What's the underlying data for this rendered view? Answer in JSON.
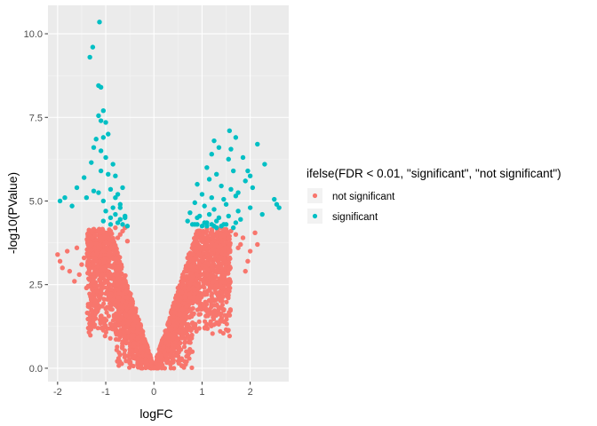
{
  "chart_data": {
    "type": "scatter",
    "title": "",
    "xlabel": "logFC",
    "ylabel": "-log10(PValue)",
    "xlim": [
      -2.2,
      2.8
    ],
    "ylim": [
      -0.4,
      10.85
    ],
    "x_ticks": [
      -2,
      -1,
      0,
      1,
      2
    ],
    "x_tick_labels": [
      "-2",
      "-1",
      "0",
      "1",
      "2"
    ],
    "y_ticks": [
      0,
      2.5,
      5,
      7.5,
      10
    ],
    "y_tick_labels": [
      "0.0",
      "2.5",
      "5.0",
      "7.5",
      "10.0"
    ],
    "grid": true,
    "legend": {
      "title": "ifelse(FDR < 0.01, \"significant\", \"not significant\")",
      "placement": "right",
      "entries": [
        {
          "label": "not significant",
          "color": "#F8766D"
        },
        {
          "label": "significant",
          "color": "#00BFC4"
        }
      ]
    },
    "colors": {
      "panel": "#EBEBEB",
      "grid_major": "#FFFFFF",
      "not_significant": "#F8766D",
      "significant": "#00BFC4"
    },
    "significance_threshold_y": 4.2,
    "series": [
      {
        "name": "significant",
        "x": [
          -1.13,
          -1.27,
          -1.33,
          -1.15,
          -1.1,
          -1.05,
          -1.15,
          -1.1,
          -1.0,
          -0.95,
          -1.05,
          -1.2,
          -1.25,
          -1.1,
          -1.0,
          -0.85,
          -1.3,
          -1.1,
          -0.95,
          -0.8,
          -1.45,
          -1.6,
          -1.85,
          -1.95,
          -1.7,
          -1.4,
          -1.25,
          -1.15,
          -1.05,
          -0.9,
          -0.75,
          -0.7,
          -0.85,
          -1.0,
          -0.8,
          -0.6,
          -0.7,
          -0.9,
          -1.05,
          -0.65,
          -0.75,
          -0.9,
          -0.55,
          -0.6,
          -0.7,
          -0.8,
          -0.65,
          1.57,
          1.25,
          1.35,
          1.6,
          1.7,
          2.15,
          1.2,
          1.55,
          1.85,
          2.3,
          1.95,
          1.1,
          1.3,
          1.65,
          1.9,
          2.0,
          0.9,
          1.15,
          1.4,
          1.6,
          1.75,
          2.05,
          1.0,
          1.2,
          1.45,
          1.7,
          2.5,
          2.55,
          2.6,
          0.85,
          1.05,
          1.25,
          1.5,
          1.75,
          2.0,
          2.25,
          0.75,
          0.95,
          1.15,
          1.35,
          1.55,
          1.8,
          0.7,
          0.9,
          1.1,
          1.3,
          1.5,
          1.7,
          0.8,
          1.0,
          1.2,
          1.4,
          0.85,
          1.05,
          1.25,
          1.45,
          1.65,
          0.9,
          1.1,
          1.3
        ],
        "y": [
          10.35,
          9.6,
          9.3,
          8.45,
          8.4,
          7.7,
          7.55,
          7.4,
          7.35,
          7.0,
          6.9,
          6.85,
          6.6,
          6.5,
          6.3,
          6.1,
          6.15,
          5.9,
          5.8,
          5.75,
          5.7,
          5.4,
          5.1,
          5.0,
          4.85,
          5.1,
          5.3,
          5.25,
          5.0,
          5.35,
          5.2,
          4.9,
          4.8,
          4.7,
          4.6,
          4.55,
          4.45,
          4.5,
          4.4,
          4.3,
          4.35,
          4.3,
          4.25,
          4.5,
          4.8,
          5.1,
          5.4,
          7.1,
          6.8,
          6.6,
          6.55,
          6.9,
          6.7,
          6.4,
          6.25,
          6.3,
          6.1,
          5.9,
          6.0,
          5.8,
          5.9,
          5.6,
          5.75,
          5.5,
          5.65,
          5.45,
          5.35,
          5.25,
          5.4,
          5.2,
          5.1,
          5.05,
          5.15,
          5.05,
          4.9,
          4.8,
          4.95,
          4.85,
          4.75,
          4.9,
          4.7,
          4.8,
          4.6,
          4.65,
          4.55,
          4.6,
          4.5,
          4.55,
          4.45,
          4.4,
          4.5,
          4.35,
          4.4,
          4.3,
          4.35,
          4.3,
          4.25,
          4.3,
          4.25,
          4.3,
          4.35,
          4.25,
          4.3,
          4.2,
          4.3,
          4.25,
          4.2
        ]
      },
      {
        "name": "not significant",
        "x": [
          -2.0,
          -1.95,
          -1.9,
          -1.8,
          -1.75,
          -1.65,
          -1.6,
          -1.55,
          -1.5,
          -1.45,
          -1.4,
          -1.35,
          -1.3,
          -1.25,
          -1.2,
          -1.15,
          -1.1,
          -1.05,
          -1.0,
          -0.95,
          -0.9,
          -0.85,
          -0.8,
          -0.75,
          -0.7,
          -0.65,
          -0.6,
          -0.55,
          2.1,
          2.15,
          2.0,
          1.95,
          1.9,
          1.85,
          1.8,
          1.75,
          1.7,
          1.6,
          1.5,
          1.4,
          1.3,
          1.2,
          1.1,
          1.0,
          0.9,
          0.8,
          0.7,
          0.6,
          0.5,
          0.45,
          0.4
        ],
        "y": [
          3.4,
          3.2,
          3.0,
          3.5,
          2.9,
          2.6,
          3.6,
          2.8,
          3.1,
          3.3,
          2.4,
          3.0,
          3.7,
          2.7,
          3.2,
          3.6,
          3.9,
          3.5,
          4.0,
          3.4,
          4.1,
          3.8,
          4.2,
          3.9,
          4.0,
          4.1,
          4.2,
          3.8,
          4.05,
          3.7,
          3.5,
          3.2,
          2.9,
          3.9,
          3.7,
          3.6,
          4.0,
          4.1,
          4.15,
          4.2,
          4.2,
          4.15,
          4.1,
          4.0,
          3.9,
          3.6,
          3.3,
          2.8,
          2.4,
          2.1,
          1.8
        ]
      }
    ]
  }
}
